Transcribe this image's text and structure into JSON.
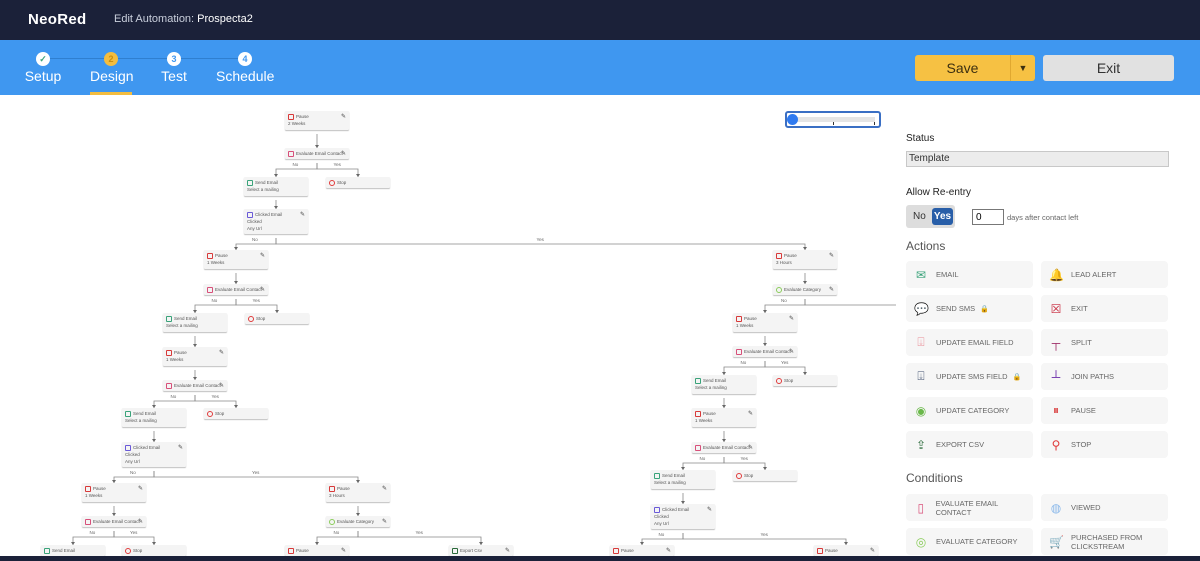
{
  "header": {
    "logo": "NeoRed",
    "title_prefix": "Edit Automation:",
    "title_name": "Prospecta2"
  },
  "steps": [
    {
      "num": "✓",
      "label": "Setup"
    },
    {
      "num": "2",
      "label": "Design"
    },
    {
      "num": "3",
      "label": "Test"
    },
    {
      "num": "4",
      "label": "Schedule"
    }
  ],
  "toolbar": {
    "save_label": "Save",
    "save_menu_icon": "caret-down-icon",
    "exit_label": "Exit"
  },
  "zoom": {
    "level": 0
  },
  "panel": {
    "status_label": "Status",
    "status_value": "Template",
    "reentry_label": "Allow Re-entry",
    "reentry_no": "No",
    "reentry_yes": "Yes",
    "reentry_selected": "Yes",
    "days_value": "0",
    "days_label": "days after contact left",
    "actions_heading": "Actions",
    "actions": [
      {
        "label": "EMAIL",
        "icon": "envelope-icon",
        "color": "#3aa37a"
      },
      {
        "label": "LEAD ALERT",
        "icon": "bell-icon",
        "color": "#f0a030"
      },
      {
        "label": "SEND SMS",
        "icon": "sms-icon",
        "color": "#3a78c8",
        "locked": true
      },
      {
        "label": "EXIT",
        "icon": "exit-icon",
        "color": "#c8283c"
      },
      {
        "label": "UPDATE EMAIL FIELD",
        "icon": "update-field-icon",
        "color": "#e88a94"
      },
      {
        "label": "SPLIT",
        "icon": "split-icon",
        "color": "#a0306a"
      },
      {
        "label": "UPDATE SMS FIELD",
        "icon": "update-field-icon",
        "color": "#3a4a6a",
        "locked": true
      },
      {
        "label": "JOIN PATHS",
        "icon": "join-icon",
        "color": "#6a28a8"
      },
      {
        "label": "UPDATE CATEGORY",
        "icon": "category-icon",
        "color": "#6ab84a"
      },
      {
        "label": "PAUSE",
        "icon": "pause-icon",
        "color": "#d83a3a"
      },
      {
        "label": "EXPORT CSV",
        "icon": "export-icon",
        "color": "#2a6a3a"
      },
      {
        "label": "STOP",
        "icon": "stop-icon",
        "color": "#e03a3a"
      }
    ],
    "conditions_heading": "Conditions",
    "conditions": [
      {
        "label": "EVALUATE EMAIL CONTACT",
        "icon": "evaluate-contact-icon",
        "color": "#d8507a"
      },
      {
        "label": "VIEWED",
        "icon": "globe-icon",
        "color": "#8ab8ea"
      },
      {
        "label": "EVALUATE CATEGORY",
        "icon": "evaluate-category-icon",
        "color": "#8acc5a"
      },
      {
        "label": "PURCHASED FROM CLICKSTREAM",
        "icon": "cart-icon",
        "color": "#7a3a8a"
      }
    ]
  },
  "flow": {
    "branch_no": "No",
    "branch_yes": "Yes",
    "nodes": [
      {
        "type": "pause",
        "title": "Pause",
        "sub": "2 Weeks"
      },
      {
        "type": "eval",
        "title": "Evaluate Email Contact"
      },
      {
        "type": "email",
        "title": "Send Email",
        "sub": "Select a mailing"
      },
      {
        "type": "stop",
        "title": "Stop"
      },
      {
        "type": "clicked",
        "title": "Clicked Email",
        "sub": "Clicked",
        "sub2": "Any Url"
      },
      {
        "type": "pause",
        "title": "Pause",
        "sub": "1 Weeks"
      },
      {
        "type": "eval",
        "title": "Evaluate Email Contact"
      },
      {
        "type": "email",
        "title": "Send Email",
        "sub": "Select a mailing"
      },
      {
        "type": "stop",
        "title": "Stop"
      },
      {
        "type": "pause",
        "title": "Pause",
        "sub": "1 Weeks"
      },
      {
        "type": "eval",
        "title": "Evaluate Email Contact"
      },
      {
        "type": "email",
        "title": "Send Email",
        "sub": "Select a mailing"
      },
      {
        "type": "stop",
        "title": "Stop"
      },
      {
        "type": "clicked",
        "title": "Clicked Email",
        "sub": "Clicked",
        "sub2": "Any Url"
      },
      {
        "type": "pause",
        "title": "Pause",
        "sub": "1 Weeks"
      },
      {
        "type": "eval",
        "title": "Evaluate Email Contact"
      },
      {
        "type": "email",
        "title": "Send Email"
      },
      {
        "type": "stop",
        "title": "Stop"
      },
      {
        "type": "pause",
        "title": "Pause",
        "sub": "3 Hours"
      },
      {
        "type": "evalcat",
        "title": "Evaluate Category"
      },
      {
        "type": "pause",
        "title": "Pause"
      },
      {
        "type": "export",
        "title": "Export Csv"
      },
      {
        "type": "pause",
        "title": "Pause",
        "sub": "3 Hours"
      },
      {
        "type": "evalcat",
        "title": "Evaluate Category"
      },
      {
        "type": "pause",
        "title": "Pause",
        "sub": "1 Weeks"
      },
      {
        "type": "eval",
        "title": "Evaluate Email Contact"
      },
      {
        "type": "email",
        "title": "Send Email",
        "sub": "Select a mailing"
      },
      {
        "type": "stop",
        "title": "Stop"
      },
      {
        "type": "pause",
        "title": "Pause",
        "sub": "1 Weeks"
      },
      {
        "type": "eval",
        "title": "Evaluate Email Contact"
      },
      {
        "type": "email",
        "title": "Send Email",
        "sub": "Select a mailing"
      },
      {
        "type": "stop",
        "title": "Stop"
      },
      {
        "type": "clicked",
        "title": "Clicked Email",
        "sub": "Clicked",
        "sub2": "Any Url"
      },
      {
        "type": "pause",
        "title": "Pause"
      },
      {
        "type": "pause",
        "title": "Pause"
      }
    ]
  }
}
